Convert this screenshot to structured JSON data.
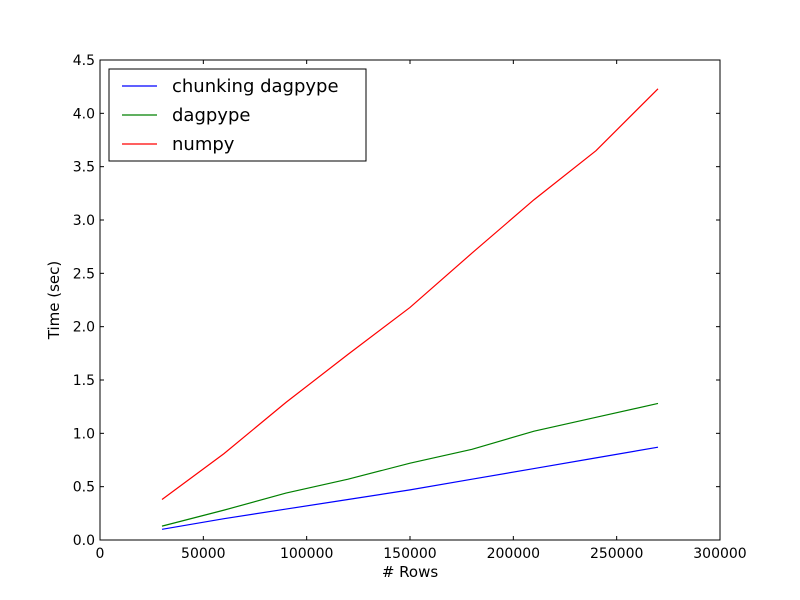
{
  "chart_data": {
    "type": "line",
    "title": "",
    "xlabel": "# Rows",
    "ylabel": "Time (sec)",
    "xlim": [
      0,
      300000
    ],
    "ylim": [
      0.0,
      4.5
    ],
    "xticks": [
      0,
      50000,
      100000,
      150000,
      200000,
      250000,
      300000
    ],
    "xtick_labels": [
      "0",
      "50000",
      "100000",
      "150000",
      "200000",
      "250000",
      "300000"
    ],
    "yticks": [
      0.0,
      0.5,
      1.0,
      1.5,
      2.0,
      2.5,
      3.0,
      3.5,
      4.0,
      4.5
    ],
    "ytick_labels": [
      "0.0",
      "0.5",
      "1.0",
      "1.5",
      "2.0",
      "2.5",
      "3.0",
      "3.5",
      "4.0",
      "4.5"
    ],
    "grid": false,
    "legend_position": "top-left",
    "series": [
      {
        "name": "chunking dagpype",
        "color": "#0000ff",
        "x": [
          30000,
          60000,
          90000,
          120000,
          150000,
          180000,
          210000,
          240000,
          270000
        ],
        "y": [
          0.1,
          0.2,
          0.29,
          0.38,
          0.47,
          0.57,
          0.67,
          0.77,
          0.87
        ]
      },
      {
        "name": "dagpype",
        "color": "#008000",
        "x": [
          30000,
          60000,
          90000,
          120000,
          150000,
          180000,
          210000,
          240000,
          270000
        ],
        "y": [
          0.13,
          0.28,
          0.44,
          0.57,
          0.72,
          0.85,
          1.02,
          1.15,
          1.28
        ]
      },
      {
        "name": "numpy",
        "color": "#ff0000",
        "x": [
          30000,
          60000,
          90000,
          120000,
          150000,
          180000,
          210000,
          240000,
          270000
        ],
        "y": [
          0.38,
          0.81,
          1.29,
          1.74,
          2.18,
          2.69,
          3.19,
          3.65,
          4.23
        ]
      }
    ]
  }
}
